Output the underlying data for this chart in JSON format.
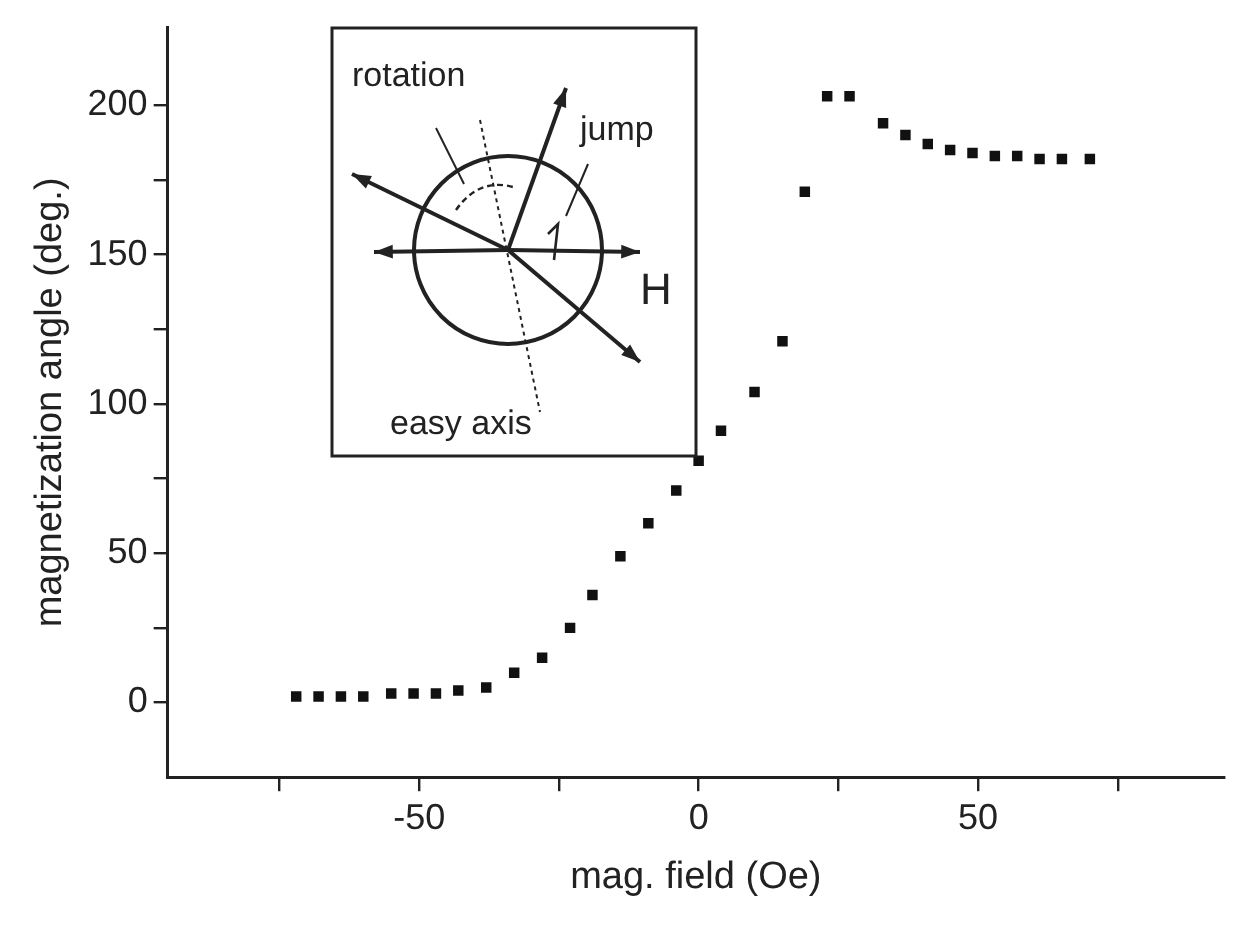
{
  "chart_data": {
    "type": "scatter",
    "xlabel": "mag. field (Oe)",
    "ylabel": "magnetization angle (deg.)",
    "x": [
      -72,
      -68,
      -64,
      -60,
      -55,
      -51,
      -47,
      -43,
      -38,
      -33,
      -28,
      -23,
      -19,
      -14,
      -9,
      -4,
      0,
      4,
      10,
      15,
      19,
      23,
      27,
      33,
      37,
      41,
      45,
      49,
      53,
      57,
      61,
      65,
      70
    ],
    "series": [
      {
        "color": "#111111",
        "values": [
          2,
          2,
          2,
          2,
          3,
          3,
          3,
          4,
          5,
          10,
          15,
          25,
          36,
          49,
          60,
          71,
          81,
          91,
          104,
          121,
          171,
          203,
          203,
          194,
          190,
          187,
          185,
          184,
          183,
          183,
          182,
          182,
          182
        ]
      }
    ],
    "xlim": [
      -95,
      94
    ],
    "xticks": [
      {
        "value": -75,
        "label": null
      },
      -50,
      {
        "value": -25,
        "label": null
      },
      0,
      {
        "value": 25,
        "label": null
      },
      50,
      {
        "value": 75,
        "label": null
      }
    ],
    "ylim": [
      -25,
      226
    ],
    "yticks": [
      0,
      {
        "value": 25,
        "label": null
      },
      50,
      {
        "value": 75,
        "label": null
      },
      100,
      {
        "value": 125,
        "label": null
      },
      150,
      {
        "value": 175,
        "label": null
      },
      200
    ],
    "grid": false,
    "legend": false,
    "marker": "square",
    "annotations": [
      "rotation",
      "jump",
      "H",
      "easy axis"
    ]
  }
}
